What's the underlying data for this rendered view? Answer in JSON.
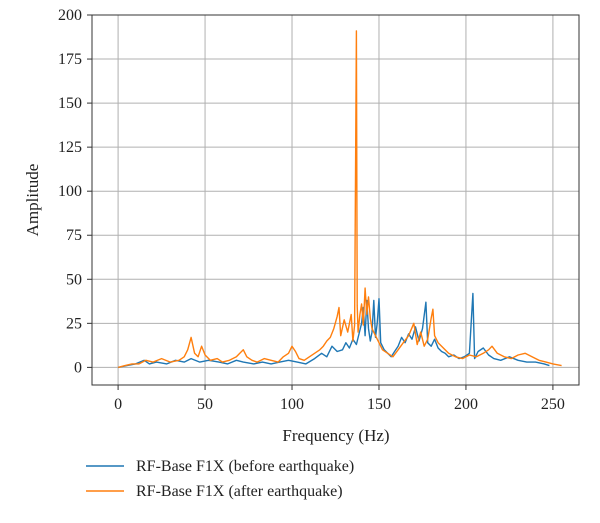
{
  "chart_data": {
    "type": "line",
    "xlabel": "Frequency (Hz)",
    "ylabel": "Amplitude",
    "xlim": [
      -15,
      265
    ],
    "ylim": [
      -10,
      200
    ],
    "x_ticks": [
      0,
      50,
      100,
      150,
      200,
      250
    ],
    "y_ticks": [
      0,
      25,
      50,
      75,
      100,
      125,
      150,
      175,
      200
    ],
    "grid": true,
    "legend_position": "bottom-left, below plot",
    "series": [
      {
        "name": "RF-Base F1X (before earthquake)",
        "color": "#1f77b4",
        "points": [
          [
            0,
            0
          ],
          [
            5,
            1
          ],
          [
            10,
            2
          ],
          [
            15,
            4
          ],
          [
            18,
            2
          ],
          [
            22,
            3
          ],
          [
            28,
            2
          ],
          [
            33,
            4
          ],
          [
            38,
            3
          ],
          [
            42,
            5
          ],
          [
            47,
            3
          ],
          [
            52,
            4
          ],
          [
            58,
            3
          ],
          [
            63,
            2
          ],
          [
            68,
            4
          ],
          [
            72,
            3
          ],
          [
            78,
            2
          ],
          [
            83,
            3
          ],
          [
            88,
            2
          ],
          [
            93,
            3
          ],
          [
            98,
            4
          ],
          [
            103,
            3
          ],
          [
            108,
            2
          ],
          [
            113,
            5
          ],
          [
            117,
            8
          ],
          [
            120,
            6
          ],
          [
            123,
            12
          ],
          [
            126,
            9
          ],
          [
            129,
            10
          ],
          [
            131,
            14
          ],
          [
            133,
            11
          ],
          [
            135,
            16
          ],
          [
            137,
            13
          ],
          [
            140,
            25
          ],
          [
            141,
            34
          ],
          [
            142,
            18
          ],
          [
            143,
            38
          ],
          [
            144,
            22
          ],
          [
            145,
            15
          ],
          [
            146,
            20
          ],
          [
            147,
            38
          ],
          [
            148,
            17
          ],
          [
            149,
            25
          ],
          [
            150,
            39
          ],
          [
            151,
            14
          ],
          [
            153,
            10
          ],
          [
            155,
            8
          ],
          [
            157,
            6
          ],
          [
            159,
            9
          ],
          [
            161,
            12
          ],
          [
            163,
            17
          ],
          [
            165,
            14
          ],
          [
            167,
            19
          ],
          [
            169,
            16
          ],
          [
            171,
            23
          ],
          [
            173,
            15
          ],
          [
            175,
            22
          ],
          [
            177,
            37
          ],
          [
            178,
            14
          ],
          [
            180,
            12
          ],
          [
            182,
            16
          ],
          [
            184,
            11
          ],
          [
            186,
            9
          ],
          [
            188,
            8
          ],
          [
            190,
            6
          ],
          [
            193,
            7
          ],
          [
            196,
            5
          ],
          [
            199,
            6
          ],
          [
            202,
            8
          ],
          [
            204,
            42
          ],
          [
            205,
            5
          ],
          [
            207,
            9
          ],
          [
            210,
            11
          ],
          [
            213,
            7
          ],
          [
            216,
            5
          ],
          [
            220,
            4
          ],
          [
            225,
            6
          ],
          [
            230,
            4
          ],
          [
            235,
            3
          ],
          [
            240,
            3
          ],
          [
            245,
            2
          ],
          [
            248,
            1
          ]
        ]
      },
      {
        "name": "RF-Base F1X (after earthquake)",
        "color": "#ff7f0e",
        "points": [
          [
            0,
            0
          ],
          [
            4,
            1
          ],
          [
            8,
            2
          ],
          [
            12,
            2
          ],
          [
            16,
            4
          ],
          [
            20,
            3
          ],
          [
            25,
            5
          ],
          [
            30,
            3
          ],
          [
            35,
            4
          ],
          [
            38,
            6
          ],
          [
            40,
            10
          ],
          [
            42,
            17
          ],
          [
            44,
            8
          ],
          [
            46,
            6
          ],
          [
            48,
            12
          ],
          [
            50,
            7
          ],
          [
            53,
            4
          ],
          [
            57,
            5
          ],
          [
            60,
            3
          ],
          [
            64,
            4
          ],
          [
            68,
            6
          ],
          [
            70,
            8
          ],
          [
            72,
            10
          ],
          [
            74,
            6
          ],
          [
            77,
            4
          ],
          [
            80,
            3
          ],
          [
            84,
            5
          ],
          [
            88,
            4
          ],
          [
            92,
            3
          ],
          [
            95,
            6
          ],
          [
            98,
            8
          ],
          [
            100,
            12
          ],
          [
            102,
            9
          ],
          [
            104,
            5
          ],
          [
            107,
            4
          ],
          [
            110,
            6
          ],
          [
            113,
            8
          ],
          [
            116,
            10
          ],
          [
            118,
            12
          ],
          [
            120,
            15
          ],
          [
            122,
            17
          ],
          [
            124,
            22
          ],
          [
            126,
            29
          ],
          [
            127,
            34
          ],
          [
            128,
            18
          ],
          [
            130,
            27
          ],
          [
            132,
            20
          ],
          [
            134,
            30
          ],
          [
            135,
            15
          ],
          [
            136,
            24
          ],
          [
            137,
            191
          ],
          [
            137.5,
            35
          ],
          [
            138,
            20
          ],
          [
            139,
            30
          ],
          [
            140,
            36
          ],
          [
            141,
            24
          ],
          [
            142,
            45
          ],
          [
            143,
            30
          ],
          [
            144,
            40
          ],
          [
            145,
            28
          ],
          [
            146,
            22
          ],
          [
            148,
            18
          ],
          [
            150,
            14
          ],
          [
            152,
            10
          ],
          [
            155,
            8
          ],
          [
            158,
            6
          ],
          [
            161,
            10
          ],
          [
            164,
            14
          ],
          [
            167,
            18
          ],
          [
            170,
            25
          ],
          [
            172,
            13
          ],
          [
            174,
            20
          ],
          [
            176,
            12
          ],
          [
            178,
            16
          ],
          [
            180,
            28
          ],
          [
            181,
            33
          ],
          [
            182,
            18
          ],
          [
            184,
            14
          ],
          [
            186,
            12
          ],
          [
            188,
            10
          ],
          [
            190,
            8
          ],
          [
            194,
            6
          ],
          [
            198,
            5
          ],
          [
            202,
            7
          ],
          [
            206,
            6
          ],
          [
            210,
            8
          ],
          [
            213,
            10
          ],
          [
            215,
            12
          ],
          [
            218,
            8
          ],
          [
            222,
            6
          ],
          [
            226,
            5
          ],
          [
            230,
            7
          ],
          [
            234,
            8
          ],
          [
            238,
            6
          ],
          [
            242,
            4
          ],
          [
            246,
            3
          ],
          [
            250,
            2
          ],
          [
            255,
            1
          ]
        ]
      }
    ]
  }
}
